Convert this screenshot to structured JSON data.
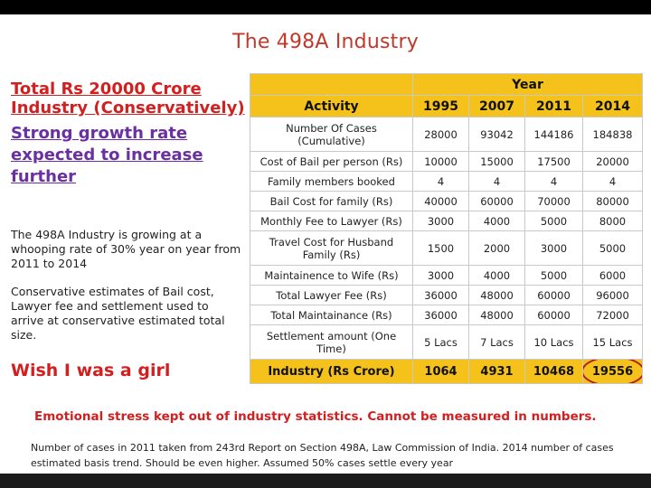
{
  "title": "The 498A Industry",
  "left": {
    "heading_red": "Total Rs 20000 Crore Industry (Conservatively)",
    "heading_purple": "Strong growth rate expected to increase further",
    "para1": "The 498A Industry is growing at a whooping rate of 30% year on year from 2011 to 2014",
    "para2": "Conservative estimates of Bail cost, Lawyer fee and settlement used to arrive at conservative estimated total size.",
    "wish": "Wish I was a girl"
  },
  "table": {
    "year_label": "Year",
    "activity_label": "Activity",
    "years": [
      "1995",
      "2007",
      "2011",
      "2014"
    ],
    "rows": [
      {
        "activity": "Number Of Cases (Cumulative)",
        "values": [
          "28000",
          "93042",
          "144186",
          "184838"
        ]
      },
      {
        "activity": "Cost of Bail per person (Rs)",
        "values": [
          "10000",
          "15000",
          "17500",
          "20000"
        ]
      },
      {
        "activity": "Family members booked",
        "values": [
          "4",
          "4",
          "4",
          "4"
        ]
      },
      {
        "activity": "Bail Cost for family (Rs)",
        "values": [
          "40000",
          "60000",
          "70000",
          "80000"
        ]
      },
      {
        "activity": "Monthly Fee to Lawyer (Rs)",
        "values": [
          "3000",
          "4000",
          "5000",
          "8000"
        ]
      },
      {
        "activity": "Travel Cost for Husband Family (Rs)",
        "values": [
          "1500",
          "2000",
          "3000",
          "5000"
        ]
      },
      {
        "activity": "Maintainence to Wife (Rs)",
        "values": [
          "3000",
          "4000",
          "5000",
          "6000"
        ]
      },
      {
        "activity": "Total Lawyer Fee (Rs)",
        "values": [
          "36000",
          "48000",
          "60000",
          "96000"
        ]
      },
      {
        "activity": "Total Maintainance (Rs)",
        "values": [
          "36000",
          "48000",
          "60000",
          "72000"
        ]
      },
      {
        "activity": "Settlement amount (One Time)",
        "values": [
          "5 Lacs",
          "7 Lacs",
          "10 Lacs",
          "15 Lacs"
        ]
      }
    ],
    "total": {
      "activity": "Industry (Rs Crore)",
      "values": [
        "1064",
        "4931",
        "10468",
        "19556"
      ]
    }
  },
  "stress_note": "Emotional stress kept out of industry statistics. Cannot be measured in numbers.",
  "footnote": "Number of cases  in 2011 taken from 243rd Report on Section 498A, Law Commission of India. 2014 number of cases estimated basis trend. Should be even higher. Assumed 50% cases settle every year",
  "colors": {
    "accent_red": "#d21f1f",
    "purple": "#6a2fa3",
    "header_yellow": "#f5c21b"
  }
}
